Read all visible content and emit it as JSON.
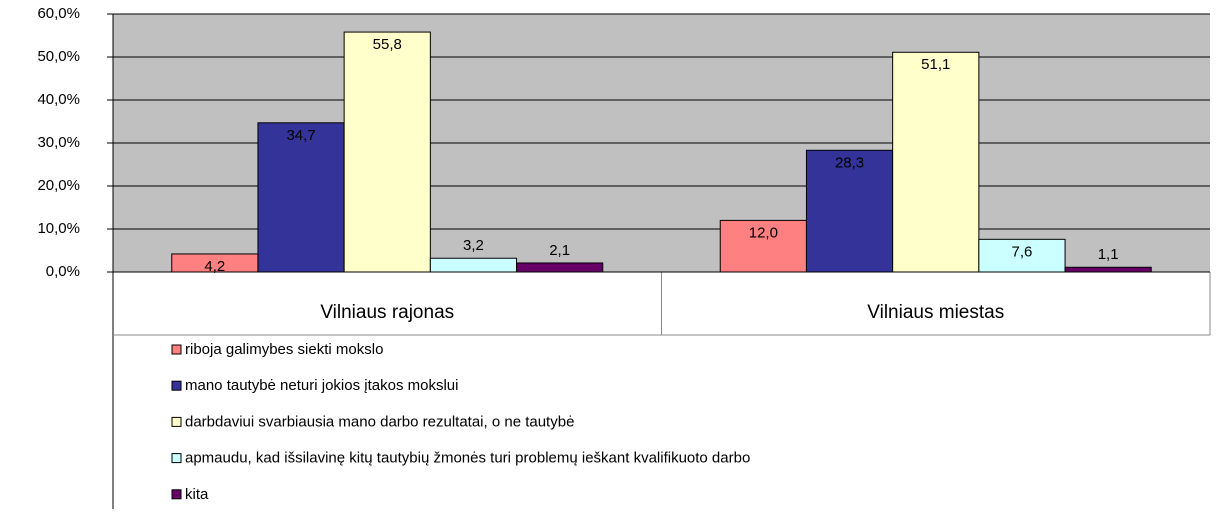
{
  "chart_data": {
    "type": "bar",
    "categories": [
      "Vilniaus rajonas",
      "Vilniaus miestas"
    ],
    "series": [
      {
        "name": "riboja galimybes siekti mokslo",
        "color": "#ff8080",
        "values": [
          4.2,
          12.0
        ],
        "value_labels": [
          "4,2",
          "12,0"
        ]
      },
      {
        "name": "mano tautybė neturi jokios įtakos mokslui",
        "color": "#333399",
        "values": [
          34.7,
          28.3
        ],
        "value_labels": [
          "34,7",
          "28,3"
        ]
      },
      {
        "name": "darbdaviui svarbiausia mano darbo rezultatai, o ne tautybė",
        "color": "#ffffcc",
        "values": [
          55.8,
          51.1
        ],
        "value_labels": [
          "55,8",
          "51,1"
        ]
      },
      {
        "name": "apmaudu, kad išsilavinę kitų tautybių žmonės turi problemų ieškant kvalifikuoto darbo",
        "color": "#ccffff",
        "values": [
          3.2,
          7.6
        ],
        "value_labels": [
          "3,2",
          "7,6"
        ]
      },
      {
        "name": "kita",
        "color": "#660066",
        "values": [
          2.1,
          1.1
        ],
        "value_labels": [
          "2,1",
          "1,1"
        ]
      }
    ],
    "ylim": [
      0,
      60
    ],
    "yticks": [
      {
        "value": 0,
        "label": "0,0%"
      },
      {
        "value": 10,
        "label": "10,0%"
      },
      {
        "value": 20,
        "label": "20,0%"
      },
      {
        "value": 30,
        "label": "30,0%"
      },
      {
        "value": 40,
        "label": "40,0%"
      },
      {
        "value": 50,
        "label": "50,0%"
      },
      {
        "value": 60,
        "label": "60,0%"
      }
    ],
    "grid": true
  }
}
